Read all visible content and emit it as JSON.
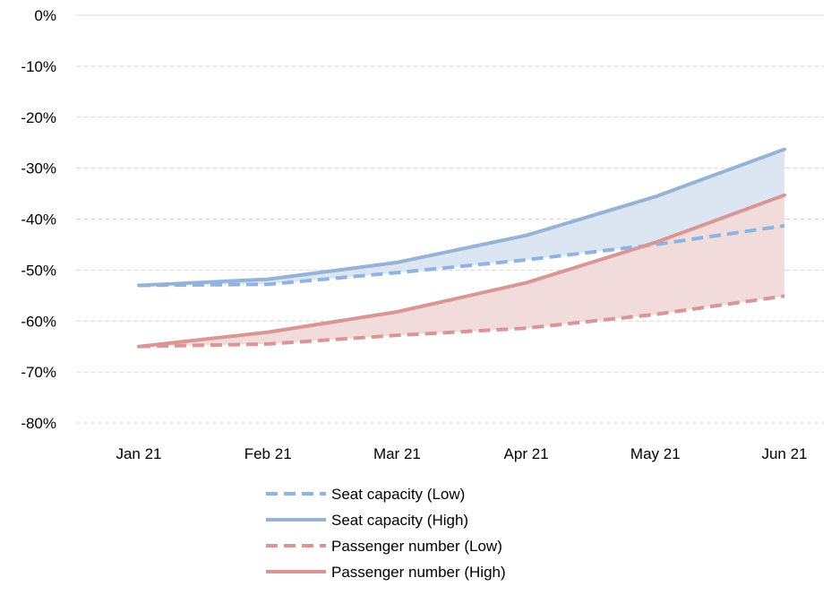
{
  "chart_data": {
    "type": "line",
    "title": "",
    "xlabel": "",
    "ylabel": "",
    "categories": [
      "Jan 21",
      "Feb 21",
      "Mar 21",
      "Apr 21",
      "May 21",
      "Jun 21"
    ],
    "ylim": [
      -80,
      0
    ],
    "yticks": [
      0,
      -10,
      -20,
      -30,
      -40,
      -50,
      -60,
      -70,
      -80
    ],
    "ytick_labels": [
      "0%",
      "-10%",
      "-20%",
      "-30%",
      "-40%",
      "-50%",
      "-60%",
      "-70%",
      "-80%"
    ],
    "grid": true,
    "legend_position": "bottom",
    "series": [
      {
        "name": "Seat capacity (Low)",
        "values": [
          -53,
          -52.8,
          -50.5,
          -48,
          -45,
          -41.3
        ],
        "color": "#8eb4e3",
        "style": "dashed"
      },
      {
        "name": "Seat capacity (High)",
        "values": [
          -53,
          -51.8,
          -48.5,
          -43.2,
          -35.6,
          -26.3
        ],
        "color": "#95b3d7",
        "style": "solid"
      },
      {
        "name": "Passenger number (Low)",
        "values": [
          -65,
          -64.5,
          -62.8,
          -61.4,
          -58.7,
          -55.1
        ],
        "color": "#d99694",
        "style": "dashed"
      },
      {
        "name": "Passenger number (High)",
        "values": [
          -65,
          -62.2,
          -58.2,
          -52.5,
          -44.6,
          -35.3
        ],
        "color": "#da9694",
        "style": "solid"
      }
    ],
    "shaded_bands": [
      {
        "between": [
          "Seat capacity (Low)",
          "Seat capacity (High)"
        ],
        "color": "#dce6f2"
      },
      {
        "between": [
          "Passenger number (Low)",
          "Passenger number (High)"
        ],
        "color": "#f2dcdb"
      }
    ]
  }
}
